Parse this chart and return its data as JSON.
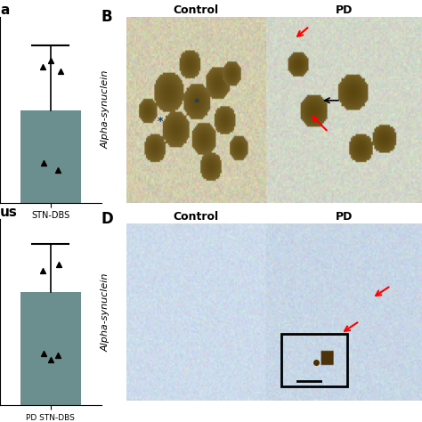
{
  "bg_color": "#ffffff",
  "label_B": "B",
  "label_D": "D",
  "label_control_B": "Control",
  "label_pd_B": "PD",
  "label_control_D": "Control",
  "label_pd_D": "PD",
  "ylabel_B": "Alpha-synuclein",
  "ylabel_D": "Alpha-synuclein",
  "left_bar_color": "#6b8e8e",
  "left_label_a": "a",
  "left_label_us": "us",
  "left_xlabel_top": "STN-DBS",
  "left_xlabel_bot": "PD STN-DBS",
  "title_fontsize": 11,
  "label_fontsize": 10,
  "ylabel_fontsize": 9
}
